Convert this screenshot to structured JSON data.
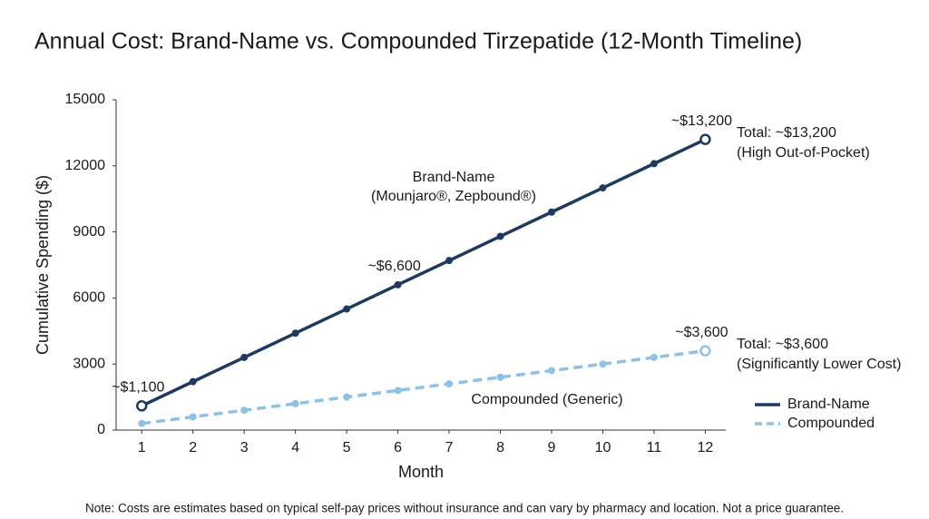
{
  "chart_data": {
    "type": "line",
    "title": "Annual Cost: Brand-Name vs. Compounded Tirzepatide (12-Month Timeline)",
    "x_label": "Month",
    "y_label": "Cumulative Spending ($)",
    "x": [
      1,
      2,
      3,
      4,
      5,
      6,
      7,
      8,
      9,
      10,
      11,
      12
    ],
    "xlim": [
      0.5,
      12.4
    ],
    "xticks": [
      1,
      2,
      3,
      4,
      5,
      6,
      7,
      8,
      9,
      10,
      11,
      12
    ],
    "ylim": [
      0,
      15000
    ],
    "yticks": [
      0,
      3000,
      6000,
      9000,
      12000,
      15000
    ],
    "legend": "lower right",
    "series": [
      {
        "name": "Brand-Name",
        "color": "#1f3a5f",
        "dash": false,
        "values": [
          1100,
          2200,
          3300,
          4400,
          5500,
          6600,
          7700,
          8800,
          9900,
          11000,
          12100,
          13200
        ],
        "value_labels": [
          "~$1,100",
          null,
          null,
          null,
          null,
          "~$6,600",
          null,
          null,
          null,
          null,
          null,
          "~$13,200"
        ]
      },
      {
        "name": "Compounded",
        "color": "#8fc1e3",
        "dash": true,
        "values": [
          300,
          600,
          900,
          1200,
          1500,
          1800,
          2100,
          2400,
          2700,
          3000,
          3300,
          3600
        ],
        "value_labels": [
          null,
          null,
          null,
          null,
          null,
          null,
          null,
          null,
          null,
          null,
          null,
          "~$3,600"
        ]
      }
    ],
    "annotations": [
      "Total: ~$13,200",
      "(High Out-of-Pocket)",
      "Total: ~$3,600",
      "(Significantly Lower Cost)",
      "Brand-Name",
      "(Mounjaro®, Zepbound®)",
      "Compounded (Generic)"
    ],
    "note": "Note: Costs are estimates based on typical self-pay prices without insurance and can vary by pharmacy and location. Not a price guarantee."
  }
}
